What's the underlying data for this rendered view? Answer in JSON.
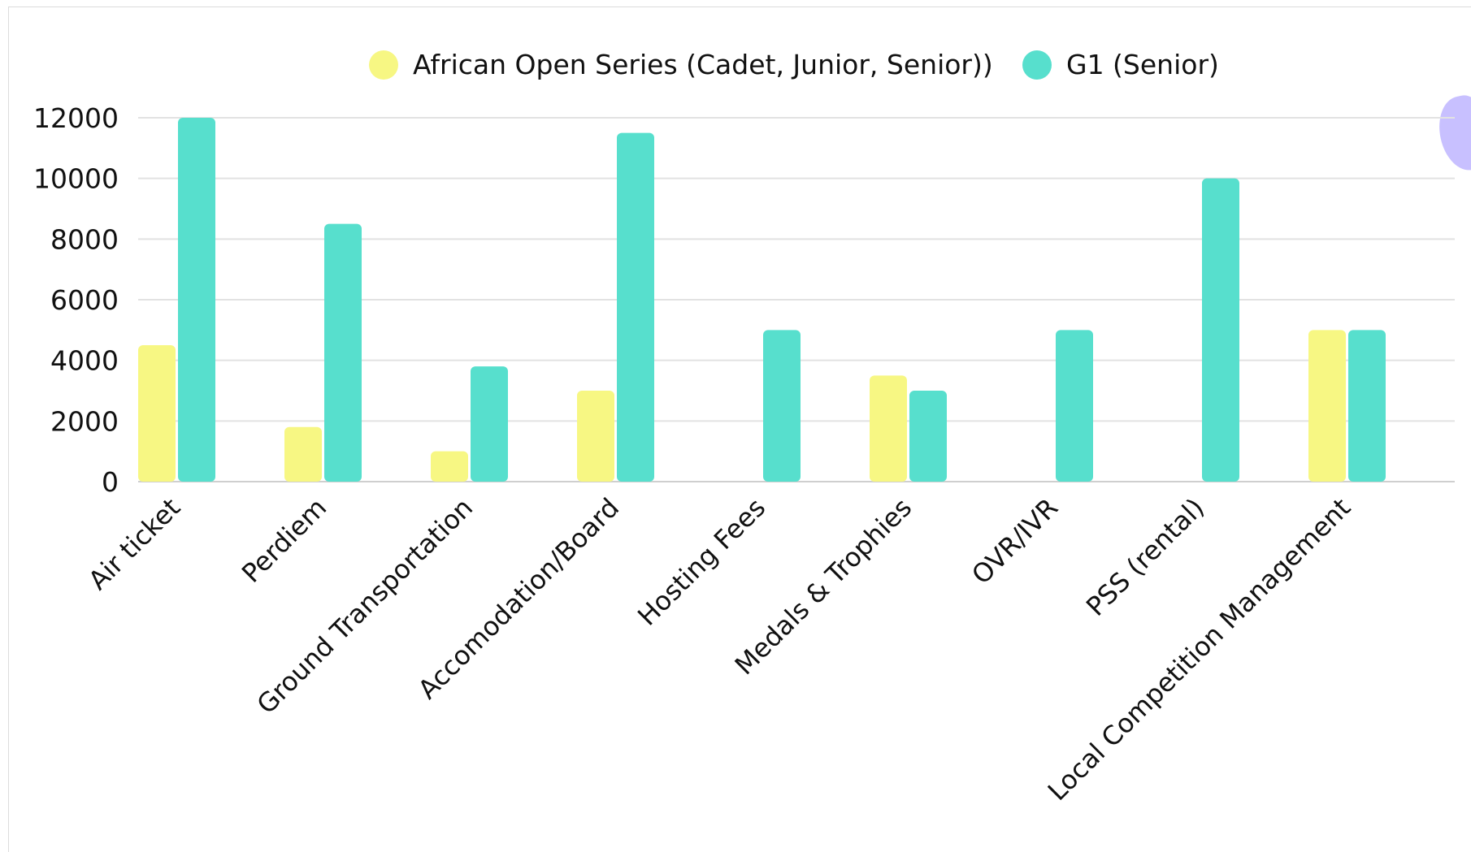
{
  "chart_data": {
    "type": "bar",
    "categories": [
      "Air ticket",
      "Perdiem",
      "Ground Transportation",
      "Accomodation/Board",
      "Hosting Fees",
      "Medals & Trophies",
      "OVR/IVR",
      "PSS (rental)",
      "Local Competition Management"
    ],
    "series": [
      {
        "name": "African Open Series (Cadet, Junior, Senior))",
        "color": "#f7f783",
        "values": [
          4500,
          1800,
          1000,
          3000,
          0,
          3500,
          0,
          0,
          5000
        ]
      },
      {
        "name": "G1 (Senior)",
        "color": "#57dfcd",
        "values": [
          12000,
          8500,
          3800,
          11500,
          5000,
          3000,
          5000,
          10000,
          5000
        ]
      }
    ],
    "yticks": [
      "0",
      "2000",
      "4000",
      "6000",
      "8000",
      "10000",
      "12000"
    ],
    "ylim": [
      0,
      12000
    ],
    "grid": true,
    "legend_position": "top-center",
    "title": "",
    "xlabel": "",
    "ylabel": ""
  }
}
